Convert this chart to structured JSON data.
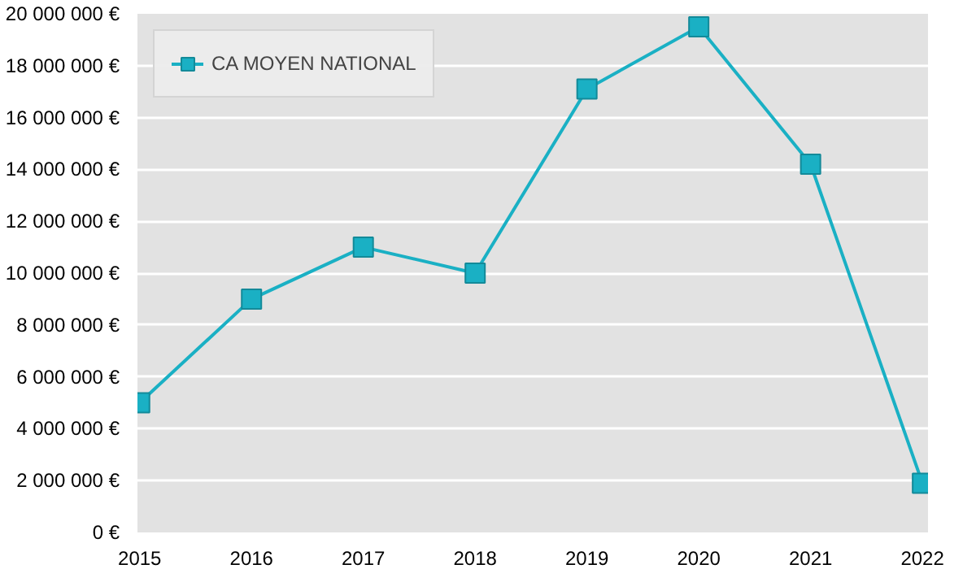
{
  "chart_data": {
    "type": "line",
    "categories": [
      "2015",
      "2016",
      "2017",
      "2018",
      "2019",
      "2020",
      "2021",
      "2022"
    ],
    "series": [
      {
        "name": "CA MOYEN NATIONAL",
        "color": "#1ab0c4",
        "values": [
          5000000,
          9000000,
          11000000,
          10000000,
          17100000,
          19500000,
          14200000,
          1900000
        ]
      }
    ],
    "ylim": [
      0,
      20000000
    ],
    "yticks": [
      {
        "value": 0,
        "label": "0 €"
      },
      {
        "value": 2000000,
        "label": "2 000 000 €"
      },
      {
        "value": 4000000,
        "label": "4 000 000 €"
      },
      {
        "value": 6000000,
        "label": "6 000 000 €"
      },
      {
        "value": 8000000,
        "label": "8 000 000 €"
      },
      {
        "value": 10000000,
        "label": "10 000 000 €"
      },
      {
        "value": 12000000,
        "label": "12 000 000 €"
      },
      {
        "value": 14000000,
        "label": "14 000 000 €"
      },
      {
        "value": 16000000,
        "label": "16 000 000 €"
      },
      {
        "value": 18000000,
        "label": "18 000 000 €"
      },
      {
        "value": 20000000,
        "label": "20 000 000 €"
      }
    ],
    "grid": "y",
    "legend": "top left",
    "marker": "square",
    "line_style": "solid"
  }
}
